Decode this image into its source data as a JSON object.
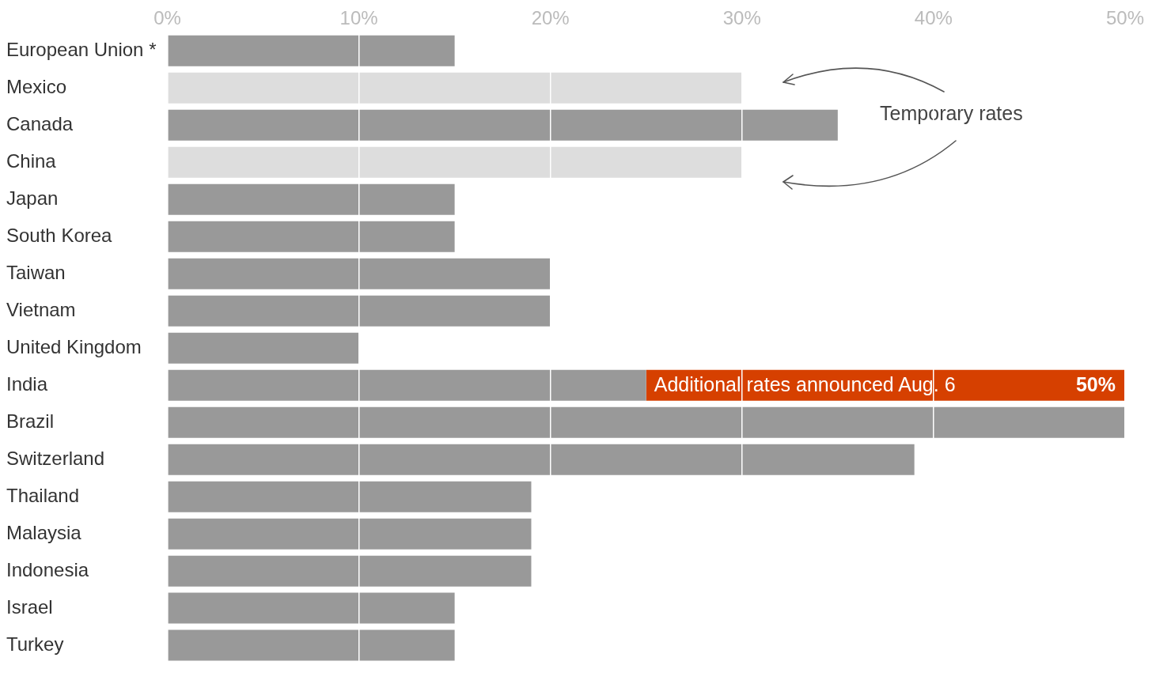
{
  "chart_data": {
    "type": "bar",
    "orientation": "horizontal",
    "stacked": true,
    "categories": [
      "European Union *",
      "Mexico",
      "Canada",
      "China",
      "Japan",
      "South Korea",
      "Taiwan",
      "Vietnam",
      "United Kingdom",
      "India",
      "Brazil",
      "Switzerland",
      "Thailand",
      "Malaysia",
      "Indonesia",
      "Israel",
      "Turkey"
    ],
    "series": [
      {
        "colors": [
          "#999999",
          "#dddddd",
          "#999999",
          "#dddddd",
          "#999999",
          "#999999",
          "#999999",
          "#999999",
          "#999999",
          "#999999",
          "#999999",
          "#999999",
          "#999999",
          "#999999",
          "#999999",
          "#999999",
          "#999999"
        ],
        "values": [
          15,
          30,
          35,
          30,
          15,
          15,
          20,
          20,
          10,
          25,
          50,
          39,
          19,
          19,
          19,
          15,
          15
        ]
      },
      {
        "name": "Additional rates announced Aug. 6",
        "color": "#d64000",
        "values": [
          null,
          null,
          null,
          null,
          null,
          null,
          null,
          null,
          null,
          25,
          null,
          null,
          null,
          null,
          null,
          null,
          null
        ]
      }
    ],
    "totals": [
      null,
      null,
      null,
      null,
      null,
      null,
      null,
      null,
      null,
      "50%",
      null,
      null,
      null,
      null,
      null,
      null,
      null
    ],
    "xlim": [
      0,
      50
    ],
    "xticks": [
      {
        "value": 0,
        "label": "0%"
      },
      {
        "value": 10,
        "label": "10%"
      },
      {
        "value": 20,
        "label": "20%"
      },
      {
        "value": 30,
        "label": "30%"
      },
      {
        "value": 40,
        "label": "40%"
      },
      {
        "value": 50,
        "label": "50%"
      }
    ],
    "grid": "x",
    "legend": false,
    "annotations": [
      "Temporary rates"
    ]
  }
}
